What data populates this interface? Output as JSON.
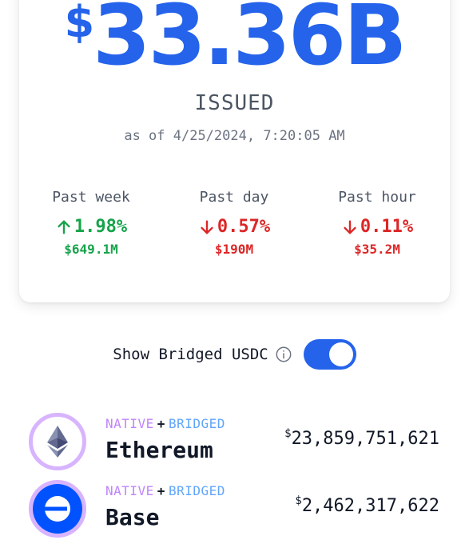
{
  "summary": {
    "currency_symbol": "$",
    "amount": "33.36B",
    "status_label": "ISSUED",
    "as_of": "as of 4/25/2024, 7:20:05 AM"
  },
  "stats": [
    {
      "label": "Past week",
      "percent": "1.98%",
      "amount": "$649.1M",
      "direction": "up",
      "color": "#16a34a"
    },
    {
      "label": "Past day",
      "percent": "0.57%",
      "amount": "$190M",
      "direction": "down",
      "color": "#dc2626"
    },
    {
      "label": "Past hour",
      "percent": "0.11%",
      "amount": "$35.2M",
      "direction": "down",
      "color": "#dc2626"
    }
  ],
  "toggle": {
    "label": "Show Bridged USDC",
    "info_icon": "info-icon",
    "state": "on",
    "color": "#2563eb"
  },
  "chains": [
    {
      "native_tag": "NATIVE",
      "plus": "+",
      "bridged_tag": "BRIDGED",
      "name": "Ethereum",
      "currency_symbol": "$",
      "value": "23,859,751,621",
      "icon": "ethereum-icon"
    },
    {
      "native_tag": "NATIVE",
      "plus": "+",
      "bridged_tag": "BRIDGED",
      "name": "Base",
      "currency_symbol": "$",
      "value": "2,462,317,622",
      "icon": "base-icon"
    }
  ],
  "colors": {
    "accent": "#2563eb",
    "up": "#16a34a",
    "down": "#dc2626",
    "native_tag": "#c084fc",
    "bridged_tag": "#60a5fa",
    "logo_ring": "#d8b4fe"
  }
}
